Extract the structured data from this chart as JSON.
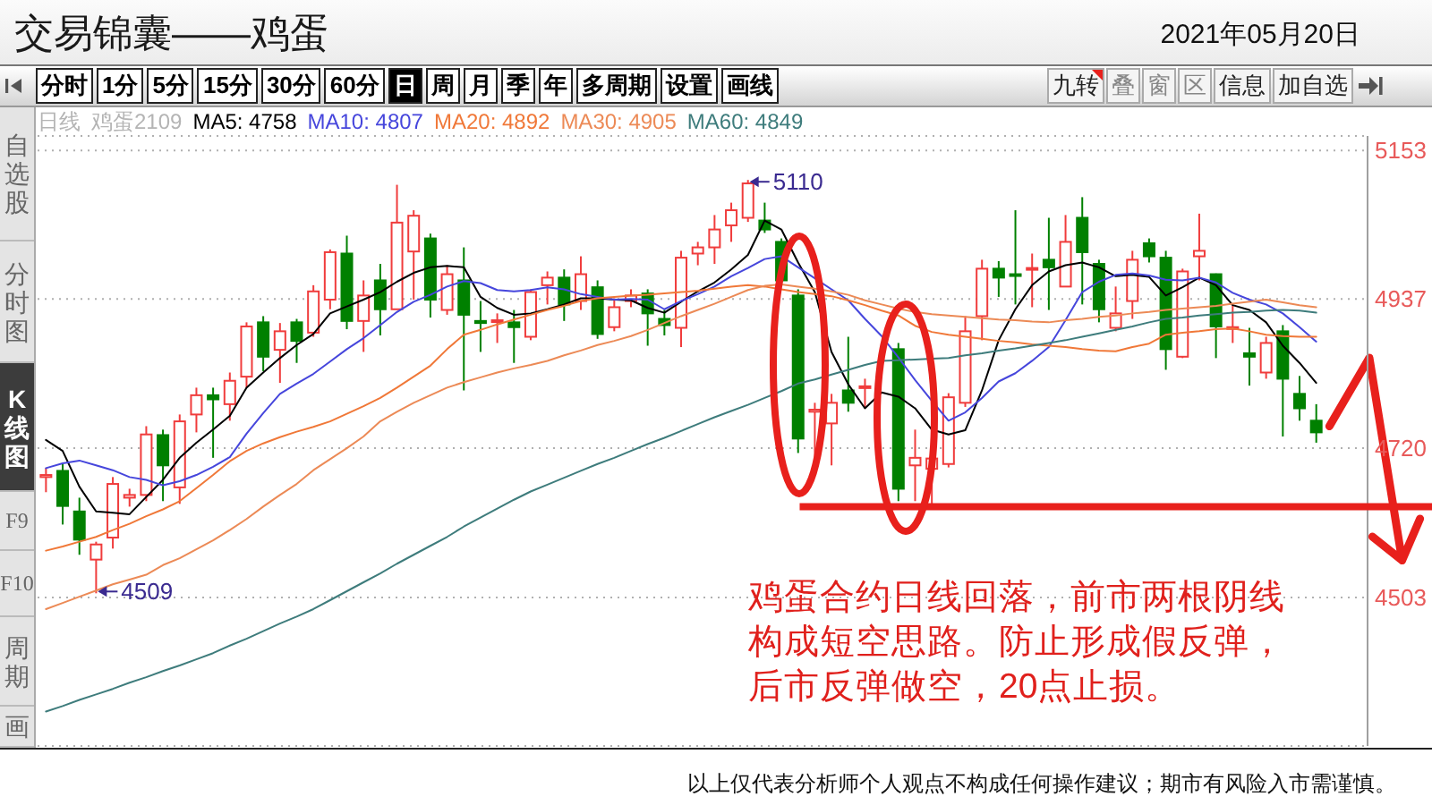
{
  "chart_data": {
    "type": "candlestick",
    "title": "交易锦囊——鸡蛋",
    "subtitle": "2021年05月20日",
    "categories": [
      null,
      null,
      null,
      null,
      null,
      null,
      null,
      null,
      null,
      null,
      null,
      null,
      null,
      null,
      null,
      null,
      null,
      null,
      null,
      null,
      null,
      null,
      null,
      null,
      null,
      null,
      null,
      null,
      null,
      null,
      null,
      null,
      null,
      null,
      null,
      null,
      null,
      null,
      null,
      null,
      null,
      null,
      null,
      null,
      null,
      null,
      null,
      null,
      null,
      null,
      null,
      null,
      null,
      null,
      null,
      null,
      null,
      null,
      null,
      null,
      null,
      null,
      null,
      null,
      null,
      null,
      null,
      null,
      null,
      null,
      null,
      null,
      null,
      null,
      null,
      null,
      null
    ],
    "ohlc": [
      [
        4678,
        4691,
        4656,
        4681
      ],
      [
        4687,
        4697,
        4609,
        4636
      ],
      [
        4628,
        4648,
        4565,
        4587
      ],
      [
        4558,
        4584,
        4509,
        4580
      ],
      [
        4590,
        4678,
        4574,
        4668
      ],
      [
        4648,
        4661,
        4635,
        4652
      ],
      [
        4652,
        4752,
        4643,
        4740
      ],
      [
        4739,
        4747,
        4643,
        4695
      ],
      [
        4663,
        4769,
        4639,
        4759
      ],
      [
        4769,
        4808,
        4743,
        4797
      ],
      [
        4797,
        4808,
        4706,
        4791
      ],
      [
        4784,
        4830,
        4760,
        4818
      ],
      [
        4824,
        4903,
        4808,
        4897
      ],
      [
        4903,
        4912,
        4832,
        4853
      ],
      [
        4863,
        4902,
        4815,
        4890
      ],
      [
        4903,
        4908,
        4844,
        4876
      ],
      [
        4888,
        4957,
        4882,
        4948
      ],
      [
        4936,
        5009,
        4922,
        5005
      ],
      [
        5003,
        5029,
        4893,
        4905
      ],
      [
        4905,
        4964,
        4860,
        4942
      ],
      [
        4964,
        4988,
        4884,
        4922
      ],
      [
        4922,
        5103,
        4922,
        5048
      ],
      [
        5006,
        5066,
        4936,
        5058
      ],
      [
        5025,
        5032,
        4910,
        4936
      ],
      [
        4921,
        4986,
        4914,
        4973
      ],
      [
        4964,
        5012,
        4804,
        4914
      ],
      [
        4905,
        4934,
        4860,
        4902
      ],
      [
        4904,
        4916,
        4873,
        4906
      ],
      [
        4903,
        4921,
        4844,
        4896
      ],
      [
        4882,
        4951,
        4877,
        4947
      ],
      [
        4957,
        4977,
        4929,
        4968
      ],
      [
        4968,
        4980,
        4905,
        4929
      ],
      [
        4934,
        4999,
        4921,
        4973
      ],
      [
        4954,
        4964,
        4879,
        4886
      ],
      [
        4896,
        4938,
        4890,
        4925
      ],
      [
        4934,
        4951,
        4925,
        4942
      ],
      [
        4945,
        4951,
        4869,
        4916
      ],
      [
        4908,
        4921,
        4884,
        4899
      ],
      [
        4895,
        5007,
        4867,
        4997
      ],
      [
        5003,
        5020,
        4986,
        5012
      ],
      [
        5012,
        5059,
        4988,
        5038
      ],
      [
        5044,
        5077,
        5020,
        5066
      ],
      [
        5055,
        5110,
        5049,
        5105
      ],
      [
        5051,
        5077,
        5033,
        5038
      ],
      [
        5020,
        5025,
        4960,
        4964
      ],
      [
        4942,
        4951,
        4713,
        4734
      ],
      [
        4773,
        4786,
        4695,
        4776
      ],
      [
        4756,
        4799,
        4695,
        4786
      ],
      [
        4804,
        4882,
        4773,
        4786
      ],
      [
        4808,
        4821,
        4778,
        4810
      ],
      null,
      [
        4864,
        4873,
        4643,
        4661
      ],
      [
        4695,
        4747,
        4643,
        4706
      ],
      [
        4690,
        4717,
        4639,
        4705
      ],
      [
        4697,
        4800,
        4692,
        4794
      ],
      [
        4786,
        4912,
        4780,
        4890
      ],
      [
        4912,
        4994,
        4877,
        4981
      ],
      [
        4981,
        4992,
        4940,
        4968
      ],
      [
        4973,
        5066,
        4929,
        4971
      ],
      [
        4980,
        5003,
        4925,
        4982
      ],
      [
        4994,
        5055,
        4921,
        4983
      ],
      [
        4955,
        5059,
        4955,
        5020
      ],
      [
        5055,
        5085,
        4929,
        5005
      ],
      [
        4988,
        4994,
        4903,
        4922
      ],
      [
        4895,
        4955,
        4890,
        4916
      ],
      [
        4934,
        5007,
        4908,
        4994
      ],
      [
        5018,
        5025,
        4990,
        4999
      ],
      [
        4997,
        5007,
        4834,
        4864
      ],
      [
        4853,
        4981,
        4851,
        4977
      ],
      [
        4999,
        5061,
        4964,
        5007
      ],
      [
        4973,
        4974,
        4851,
        4897
      ],
      [
        4894,
        4929,
        4873,
        4896
      ],
      [
        4858,
        4895,
        4811,
        4853
      ],
      [
        4830,
        4882,
        4821,
        4873
      ],
      [
        4890,
        4899,
        4737,
        4821
      ],
      [
        4799,
        4825,
        4760,
        4778
      ],
      [
        4760,
        4784,
        4728,
        4743
      ]
    ],
    "colors": [
      "#f03c3c",
      "#008000",
      "#008000",
      "#f03c3c",
      "#f03c3c",
      "#f03c3c",
      "#f03c3c",
      "#008000",
      "#f03c3c",
      "#f03c3c",
      "#008000",
      "#f03c3c",
      "#f03c3c",
      "#008000",
      "#f03c3c",
      "#008000",
      "#f03c3c",
      "#f03c3c",
      "#008000",
      "#f03c3c",
      "#008000",
      "#f03c3c",
      "#f03c3c",
      "#008000",
      "#f03c3c",
      "#008000",
      "#008000",
      "#f03c3c",
      "#008000",
      "#f03c3c",
      "#f03c3c",
      "#008000",
      "#f03c3c",
      "#008000",
      "#f03c3c",
      "#f03c3c",
      "#008000",
      "#008000",
      "#f03c3c",
      "#f03c3c",
      "#f03c3c",
      "#f03c3c",
      "#f03c3c",
      "#008000",
      "#008000",
      "#008000",
      "#f03c3c",
      "#f03c3c",
      "#008000",
      "#f03c3c",
      null,
      "#008000",
      "#f03c3c",
      "#f03c3c",
      "#f03c3c",
      "#f03c3c",
      "#f03c3c",
      "#008000",
      "#008000",
      "#f03c3c",
      "#008000",
      "#f03c3c",
      "#008000",
      "#008000",
      "#f03c3c",
      "#f03c3c",
      "#008000",
      "#008000",
      "#f03c3c",
      "#f03c3c",
      "#008000",
      "#f03c3c",
      "#008000",
      "#f03c3c",
      "#008000",
      "#008000",
      "#008000"
    ],
    "series": [
      {
        "name": "MA5: 4758",
        "type": "line",
        "color": "#000000",
        "values": [
          4732,
          4716,
          4664,
          4628,
          4626,
          4624,
          4649,
          4674,
          4706,
          4728,
          4747,
          4767,
          4808,
          4830,
          4851,
          4870,
          4886,
          4916,
          4926,
          4936,
          4947,
          4962,
          4975,
          4983,
          4985,
          4983,
          4940,
          4924,
          4914,
          4916,
          4922,
          4929,
          4938,
          4938,
          4936,
          4935,
          4924,
          4917,
          4933,
          4948,
          4961,
          4980,
          5001,
          5051,
          5038,
          4990,
          4947,
          4860,
          4813,
          4778,
          4801,
          4795,
          4778,
          4747,
          4740,
          4746,
          4804,
          4877,
          4922,
          4957,
          4977,
          4986,
          4990,
          4983,
          4970,
          4972,
          4969,
          4942,
          4954,
          4968,
          4957,
          4928,
          4921,
          4903,
          4869,
          4844,
          4815
        ]
      },
      {
        "name": "MA10: 4807",
        "type": "line",
        "color": "#4646dc",
        "values": [
          4691,
          4698,
          4702,
          4695,
          4688,
          4678,
          4674,
          4666,
          4672,
          4681,
          4693,
          4707,
          4741,
          4771,
          4799,
          4814,
          4828,
          4846,
          4864,
          4880,
          4899,
          4918,
          4933,
          4943,
          4955,
          4963,
          4960,
          4950,
          4948,
          4950,
          4954,
          4951,
          4944,
          4940,
          4936,
          4937,
          4936,
          4922,
          4934,
          4944,
          4955,
          4970,
          4982,
          4995,
          4999,
          4983,
          4967,
          4951,
          4935,
          4908,
          4883,
          4852,
          4819,
          4789,
          4760,
          4772,
          4793,
          4817,
          4829,
          4847,
          4867,
          4906,
          4947,
          4962,
          4972,
          4974,
          4971,
          4965,
          4964,
          4968,
          4961,
          4946,
          4936,
          4929,
          4916,
          4896,
          4875
        ]
      },
      {
        "name": "MA20: 4892",
        "type": "line",
        "color": "#f07838",
        "values": [
          4571,
          4577,
          4584,
          4591,
          4601,
          4610,
          4621,
          4631,
          4643,
          4662,
          4681,
          4701,
          4716,
          4727,
          4736,
          4744,
          4751,
          4759,
          4770,
          4781,
          4793,
          4808,
          4824,
          4840,
          4864,
          4885,
          4892,
          4900,
          4907,
          4914,
          4921,
          4927,
          4934,
          4938,
          4940,
          4942,
          4943,
          4945,
          4947,
          4949,
          4952,
          4955,
          4957,
          4955,
          4951,
          4947,
          4944,
          4941,
          4935,
          4928,
          4920,
          4913,
          4898,
          4889,
          4885,
          4882,
          4879,
          4876,
          4874,
          4871,
          4869,
          4867,
          4864,
          4862,
          4861,
          4867,
          4872,
          4885,
          4888,
          4890,
          4893,
          4894,
          4890,
          4885,
          4883,
          4882,
          4882
        ]
      },
      {
        "name": "MA30: 4905",
        "type": "line",
        "color": "#ec8a56",
        "values": [
          4486,
          4495,
          4504,
          4513,
          4522,
          4529,
          4536,
          4550,
          4560,
          4573,
          4586,
          4601,
          4617,
          4635,
          4652,
          4668,
          4688,
          4704,
          4720,
          4737,
          4759,
          4773,
          4786,
          4797,
          4808,
          4816,
          4823,
          4830,
          4836,
          4841,
          4847,
          4855,
          4862,
          4870,
          4876,
          4883,
          4892,
          4902,
          4912,
          4921,
          4930,
          4940,
          4950,
          4956,
          4958,
          4955,
          4952,
          4948,
          4943,
          4935,
          4929,
          4923,
          4918,
          4915,
          4913,
          4911,
          4909,
          4907,
          4906,
          4904,
          4903,
          4906,
          4908,
          4911,
          4913,
          4916,
          4918,
          4921,
          4923,
          4925,
          4927,
          4930,
          4933,
          4936,
          4932,
          4928,
          4925
        ]
      },
      {
        "name": "MA60: 4849",
        "type": "line",
        "color": "#3e7c7c",
        "values": [
          4337,
          4345,
          4354,
          4362,
          4370,
          4379,
          4387,
          4396,
          4404,
          4413,
          4422,
          4433,
          4443,
          4454,
          4465,
          4475,
          4486,
          4499,
          4512,
          4525,
          4538,
          4552,
          4565,
          4578,
          4591,
          4606,
          4619,
          4632,
          4645,
          4657,
          4667,
          4677,
          4687,
          4697,
          4706,
          4716,
          4726,
          4735,
          4745,
          4755,
          4765,
          4774,
          4783,
          4793,
          4803,
          4814,
          4820,
          4827,
          4834,
          4841,
          4847,
          4848,
          4849,
          4850,
          4851,
          4855,
          4858,
          4862,
          4865,
          4869,
          4873,
          4877,
          4882,
          4887,
          4892,
          4897,
          4903,
          4908,
          4910,
          4913,
          4915,
          4917,
          4918,
          4920,
          4921,
          4920,
          4917
        ]
      }
    ],
    "ylim": [
      4287,
      5174
    ],
    "yticks": [
      4503,
      4720,
      4937,
      5153
    ],
    "grid": "y",
    "legend": "top left",
    "marker": "none",
    "tick_labels": "y",
    "ref_lines": [
      {
        "axis": "y",
        "value": 4635,
        "color": "#e8201c"
      }
    ],
    "annotations": [
      "分时",
      "1分",
      "5分",
      "15分",
      "30分",
      "60分",
      "日",
      "周",
      "月",
      "季",
      "年",
      "多周期",
      "设置",
      "画线",
      "九转",
      "叠",
      "窗",
      "区",
      "信息",
      "加自选",
      "自选股",
      "分时图",
      "K线图",
      "F9",
      "F10",
      "周期",
      "画",
      "日线",
      "鸡蛋2109",
      "鸡蛋合约日线回落，前市两根阴线构成短空思路。防止形成假反弹，后市反弹做空，20点止损。",
      "以上仅代表分析师个人观点不构成任何操作建议；期市有风险入市需谨慎。",
      "5110",
      "4509"
    ]
  }
}
